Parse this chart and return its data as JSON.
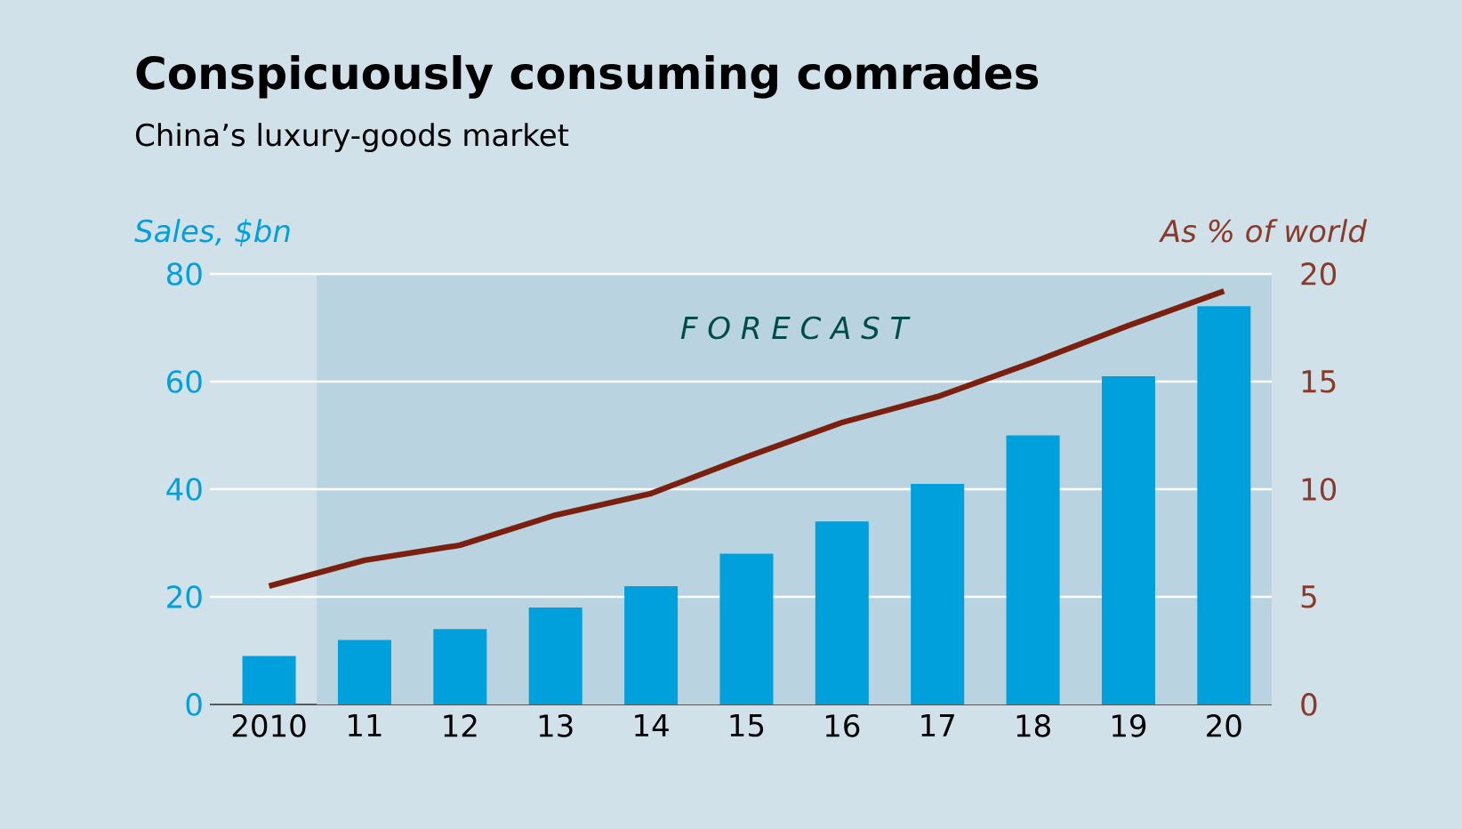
{
  "chart_data": {
    "type": "bar",
    "title": "Conspicuously consuming comrades",
    "subtitle": "China’s luxury-goods market",
    "ylabel": "Sales, $bn",
    "y2label": "As % of world",
    "categories": [
      "2010",
      "11",
      "12",
      "13",
      "14",
      "15",
      "16",
      "17",
      "18",
      "19",
      "20"
    ],
    "series": [
      {
        "color": "#00a0dc",
        "values": [
          9,
          12,
          14,
          18,
          22,
          28,
          34,
          41,
          50,
          61,
          74
        ]
      },
      {
        "type": "line",
        "axis": "y2",
        "color": "#7b1f0e",
        "values": [
          5.5,
          6.7,
          7.4,
          8.8,
          9.8,
          11.5,
          13.1,
          14.3,
          15.9,
          17.6,
          19.2
        ]
      }
    ],
    "ylim": [
      0,
      80
    ],
    "yticks": [
      0,
      20,
      40,
      60,
      80
    ],
    "y2lim": [
      0,
      20
    ],
    "y2ticks": [
      0,
      5,
      10,
      15,
      20
    ],
    "bands": [
      {
        "axis": "x",
        "from": "11",
        "to": "20",
        "label": "F O R E C A S T",
        "color": "#b9d3e0"
      }
    ],
    "grid": "y"
  }
}
